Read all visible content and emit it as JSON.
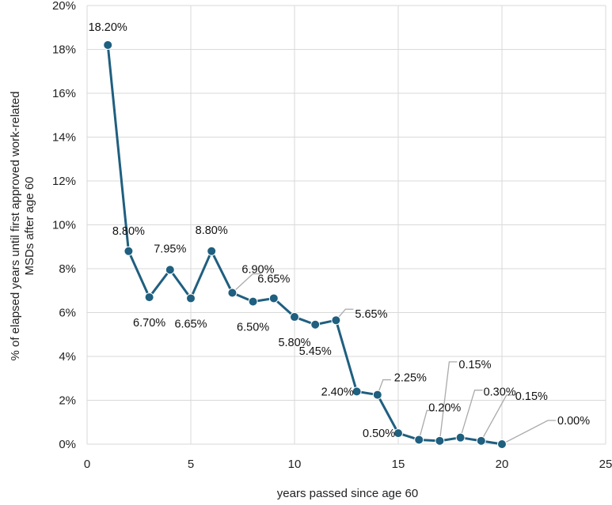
{
  "chart_data": {
    "type": "line",
    "title": "",
    "xlabel": "years passed since age 60",
    "ylabel_line1": "% of elapsed years until first approved work-related",
    "ylabel_line2": "MSDs after age 60",
    "xlim": [
      0,
      25
    ],
    "ylim": [
      0,
      20
    ],
    "x_ticks": [
      0,
      5,
      10,
      15,
      20,
      25
    ],
    "y_ticks": [
      "0%",
      "2%",
      "4%",
      "6%",
      "8%",
      "10%",
      "12%",
      "14%",
      "16%",
      "18%",
      "20%"
    ],
    "grid": true,
    "legend": false,
    "line_color": "#1f5f7f",
    "x": [
      1,
      2,
      3,
      4,
      5,
      6,
      7,
      8,
      9,
      10,
      11,
      12,
      13,
      14,
      15,
      16,
      17,
      18,
      19,
      20
    ],
    "values": [
      18.2,
      8.8,
      6.7,
      7.95,
      6.65,
      8.8,
      6.9,
      6.5,
      6.65,
      5.8,
      5.45,
      5.65,
      2.4,
      2.25,
      0.5,
      0.2,
      0.15,
      0.3,
      0.15,
      0.0
    ],
    "labels": [
      "18.20%",
      "8.80%",
      "6.70%",
      "7.95%",
      "6.65%",
      "8.80%",
      "6.90%",
      "6.50%",
      "6.65%",
      "5.80%",
      "5.45%",
      "5.65%",
      "2.40%",
      "2.25%",
      "0.50%",
      "0.20%",
      "0.15%",
      "0.30%",
      "0.15%",
      "0.00%"
    ]
  }
}
